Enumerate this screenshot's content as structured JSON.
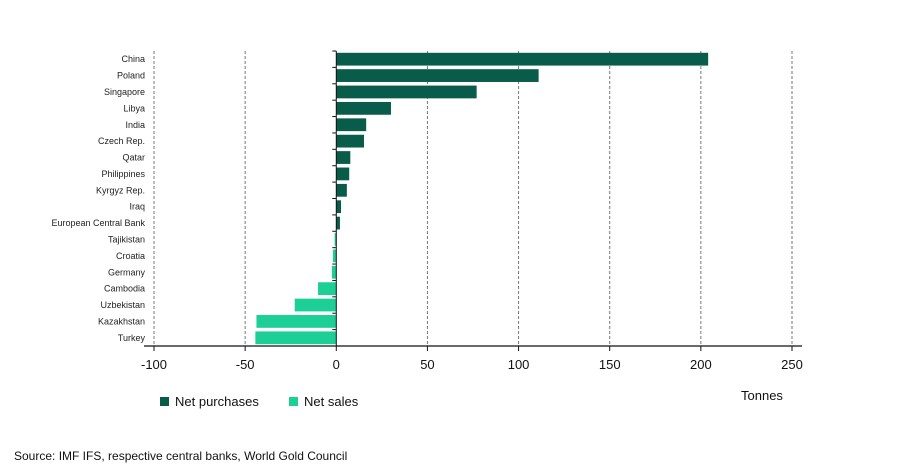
{
  "chart_data": {
    "type": "bar",
    "orientation": "horizontal",
    "categories": [
      "China",
      "Poland",
      "Singapore",
      "Libya",
      "India",
      "Czech Rep.",
      "Qatar",
      "Philippines",
      "Kyrgyz Rep.",
      "Iraq",
      "European Central Bank",
      "Tajikistan",
      "Croatia",
      "Germany",
      "Cambodia",
      "Uzbekistan",
      "Kazakhstan",
      "Turkey"
    ],
    "values": [
      204,
      111,
      77,
      30,
      16.4,
      15.2,
      7.7,
      7.1,
      5.8,
      2.6,
      2.0,
      -0.9,
      -1.8,
      -2.4,
      -10,
      -22.8,
      -43.8,
      -44.4
    ],
    "xlim": [
      -100,
      250
    ],
    "xticks": [
      "-100",
      "-50",
      "0",
      "50",
      "100",
      "150",
      "200",
      "250"
    ],
    "xlabel": "Tonnes",
    "grid": "vertical dashed",
    "legend": [
      {
        "name": "Net purchases",
        "color": "#0a5c4a"
      },
      {
        "name": "Net sales",
        "color": "#1ccf94"
      }
    ],
    "legend_placement": "bottom-left"
  },
  "source": "Source: IMF IFS, respective central banks, World Gold Council"
}
